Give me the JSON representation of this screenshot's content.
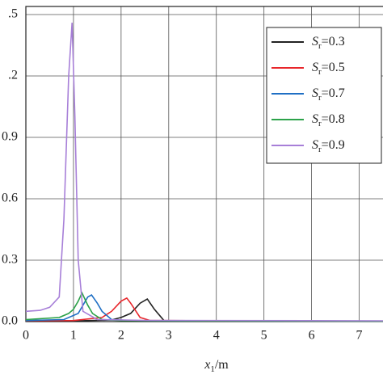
{
  "chart_data": {
    "type": "line",
    "x_label": "x1/m",
    "xlim": [
      0,
      7.5
    ],
    "ylim": [
      0,
      1.5
    ],
    "xticks": [
      0,
      1,
      2,
      3,
      4,
      5,
      6,
      7
    ],
    "yticks": [
      {
        "value": 0,
        "label": "0.0"
      },
      0.3,
      0.6,
      0.9,
      {
        "value": 1.2,
        "label": ".2"
      },
      {
        "value": 1.5,
        "label": ".5"
      }
    ],
    "grid": true,
    "legend": "upper right",
    "series": [
      {
        "name": "Sr=0.3",
        "color": "#222222",
        "x": [
          0,
          1.0,
          1.8,
          2.0,
          2.2,
          2.4,
          2.55,
          2.7,
          2.9,
          4.0,
          5.5,
          7.5
        ],
        "values": [
          0.003,
          0.003,
          0.008,
          0.02,
          0.04,
          0.09,
          0.11,
          0.06,
          0.005,
          0.003,
          0.002,
          0.001
        ]
      },
      {
        "name": "Sr=0.5",
        "color": "#e8262b",
        "x": [
          0,
          1.0,
          1.6,
          1.8,
          2.0,
          2.12,
          2.2,
          2.4,
          2.6,
          4.0,
          7.5
        ],
        "values": [
          0.004,
          0.005,
          0.02,
          0.05,
          0.1,
          0.115,
          0.09,
          0.02,
          0.006,
          0.004,
          0.002
        ]
      },
      {
        "name": "Sr=0.7",
        "color": "#1f6fc4",
        "x": [
          0,
          0.8,
          1.1,
          1.2,
          1.3,
          1.38,
          1.5,
          1.6,
          1.8,
          2.2,
          4.0,
          7.5
        ],
        "values": [
          0.005,
          0.01,
          0.04,
          0.08,
          0.12,
          0.13,
          0.09,
          0.05,
          0.01,
          0.005,
          0.003,
          0.002
        ]
      },
      {
        "name": "Sr=0.8",
        "color": "#2ca24a",
        "x": [
          0,
          0.7,
          0.9,
          1.0,
          1.1,
          1.18,
          1.3,
          1.4,
          1.6,
          2.0,
          4.0,
          7.5
        ],
        "values": [
          0.01,
          0.02,
          0.04,
          0.06,
          0.1,
          0.14,
          0.08,
          0.04,
          0.01,
          0.005,
          0.003,
          0.002
        ]
      },
      {
        "name": "Sr=0.9",
        "color": "#a77fd8",
        "x": [
          0,
          0.3,
          0.5,
          0.7,
          0.8,
          0.9,
          0.97,
          1.03,
          1.1,
          1.2,
          1.5,
          2.5,
          7.5
        ],
        "values": [
          0.05,
          0.055,
          0.07,
          0.12,
          0.5,
          1.2,
          1.46,
          1.0,
          0.3,
          0.05,
          0.01,
          0.006,
          0.004
        ]
      }
    ]
  }
}
